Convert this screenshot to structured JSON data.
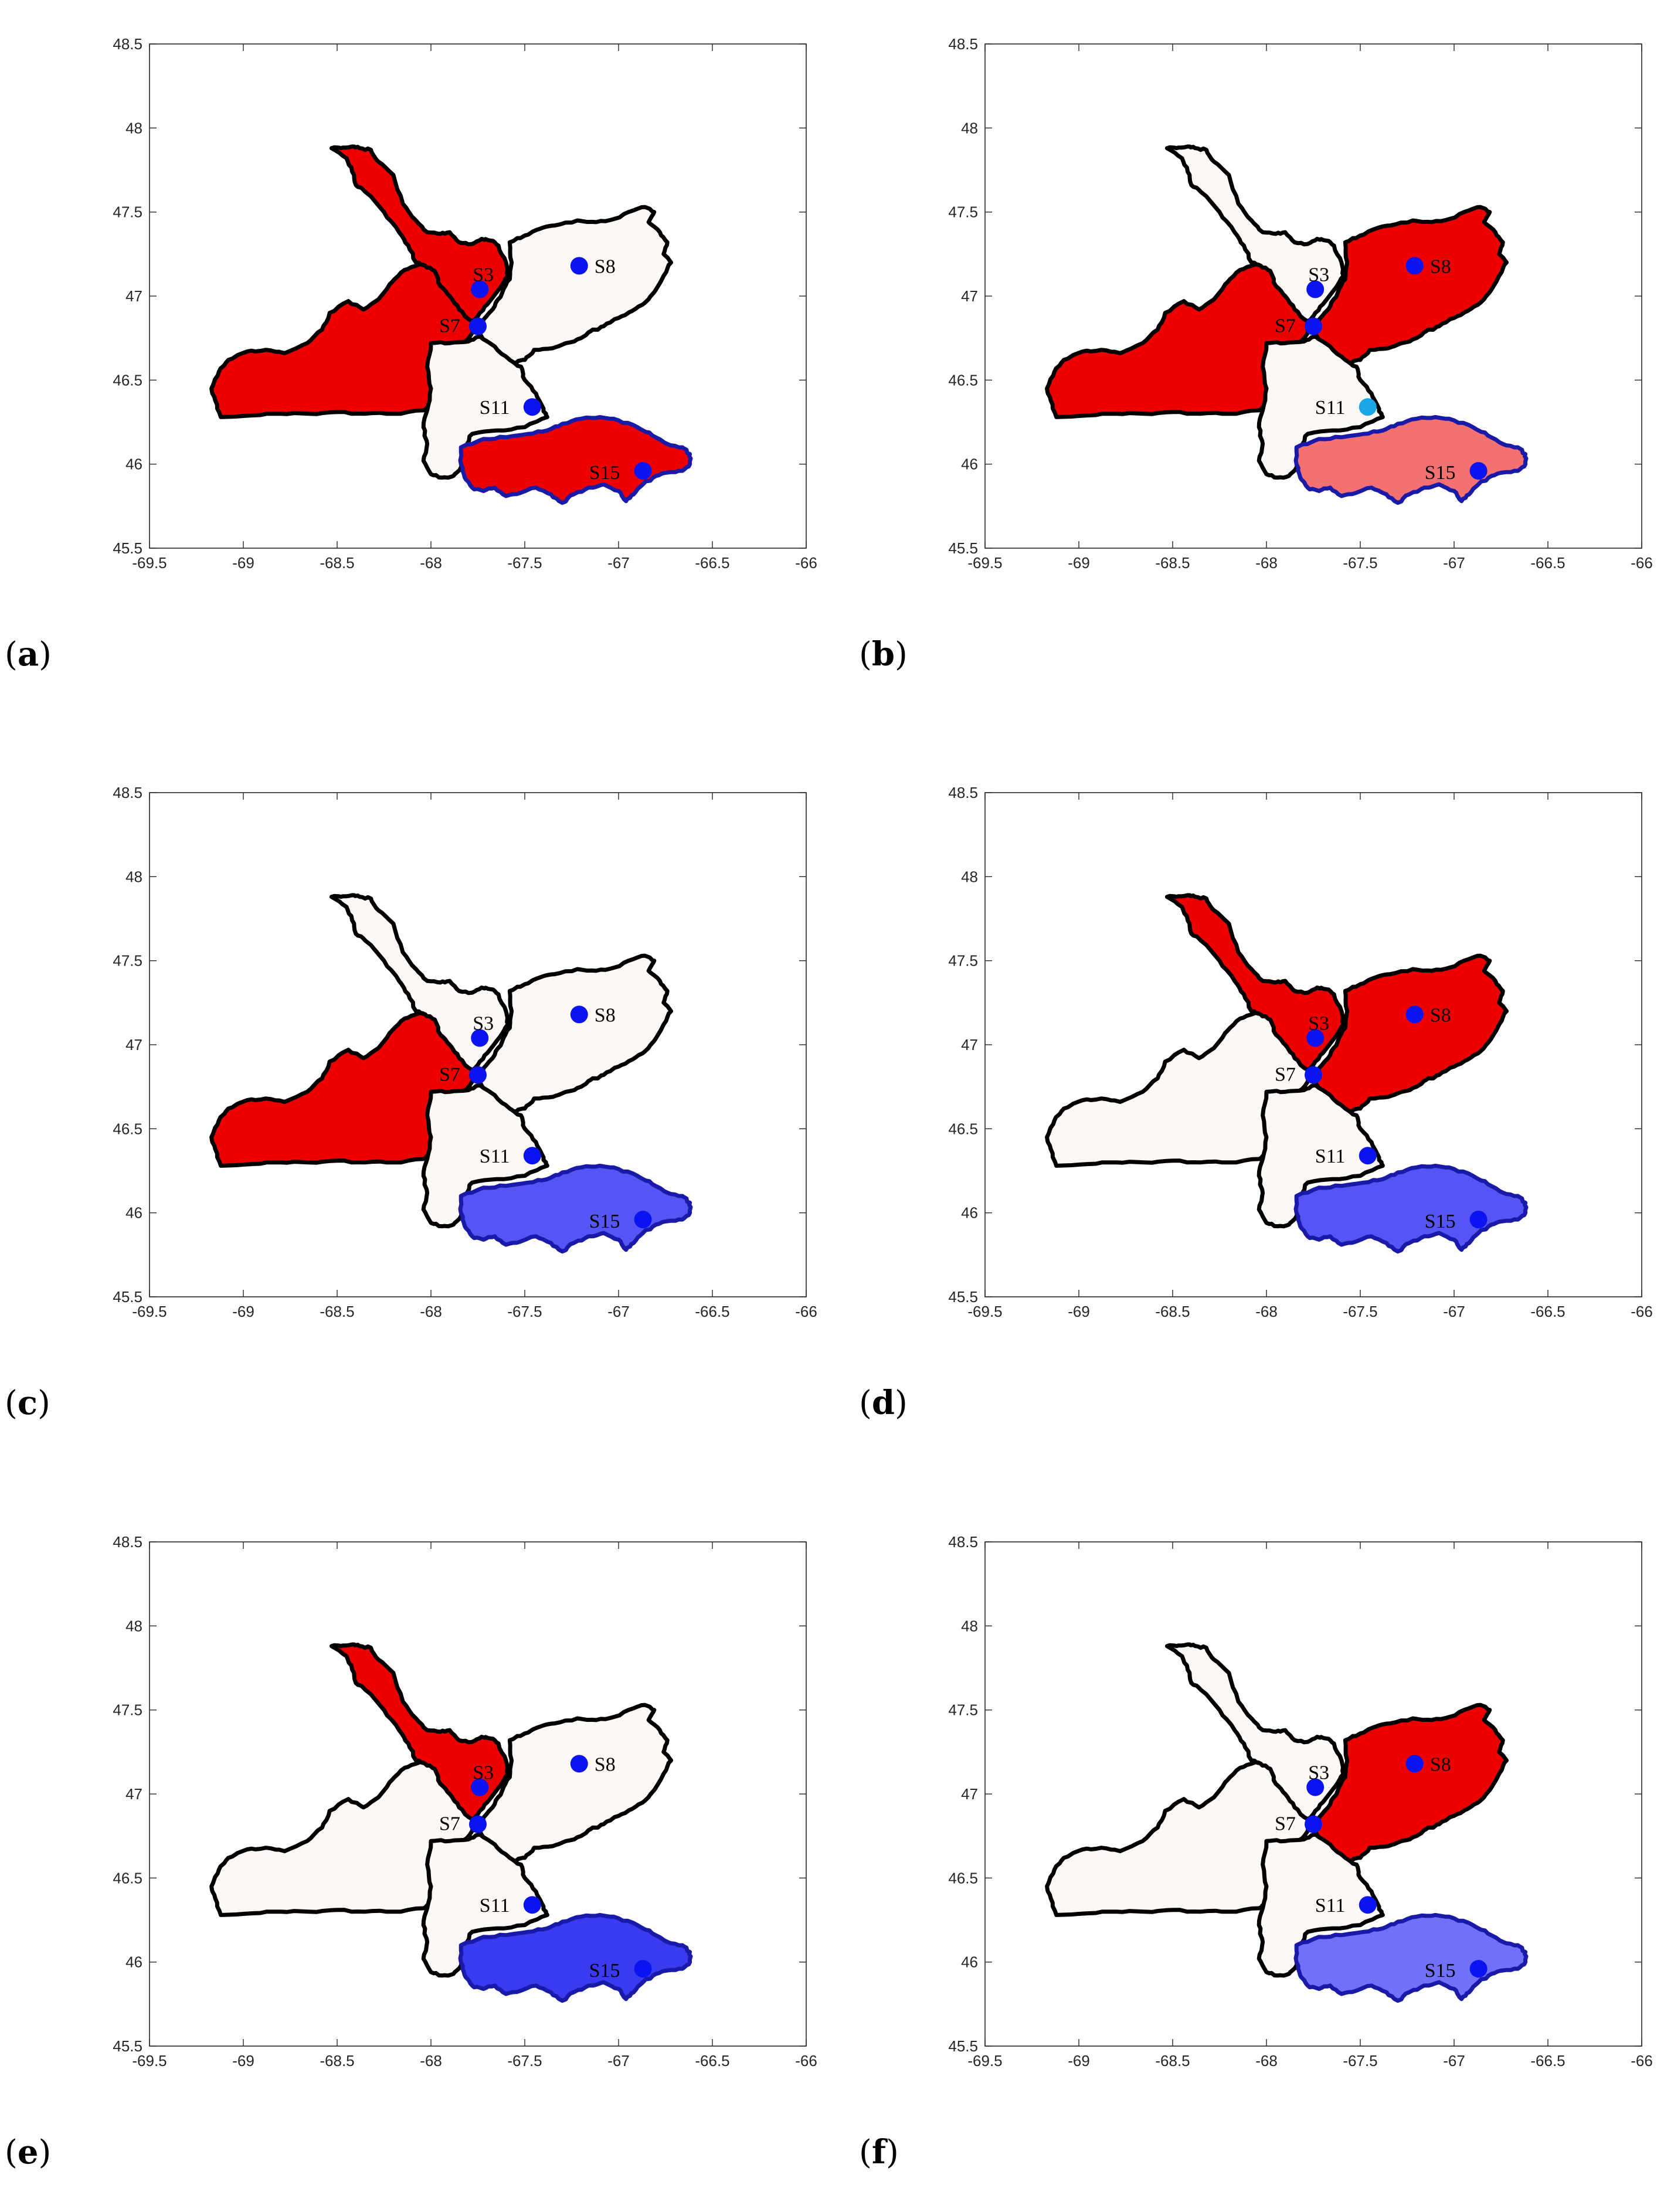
{
  "axis": {
    "xlim": [
      -69.5,
      -66
    ],
    "ylim": [
      45.5,
      48.5
    ],
    "x_ticks": [
      "-69.5",
      "-69",
      "-68.5",
      "-68",
      "-67.5",
      "-67",
      "-66.5",
      "-66"
    ],
    "y_ticks": [
      "45.5",
      "46",
      "46.5",
      "47",
      "47.5",
      "48",
      "48.5"
    ]
  },
  "stations": [
    {
      "id": "S3",
      "label": "S3",
      "lon": -67.74,
      "lat": 47.04
    },
    {
      "id": "S7",
      "label": "S7",
      "lon": -67.75,
      "lat": 46.82
    },
    {
      "id": "S8",
      "label": "S8",
      "lon": -67.21,
      "lat": 47.18
    },
    {
      "id": "S11",
      "label": "S11",
      "lon": -67.46,
      "lat": 46.34
    },
    {
      "id": "S15",
      "label": "S15",
      "lon": -66.87,
      "lat": 45.96
    }
  ],
  "colors": {
    "red": "#ee0000",
    "light_red": "#f57070",
    "white": "#fdf8f6",
    "blue": "#3a3af0",
    "mid_blue": "#5555f5",
    "light_blue": "#7070f8",
    "station_blue": "#0a14f0",
    "station_cyan": "#18a8e8"
  },
  "panels": [
    {
      "id": "a",
      "letter": "a",
      "fills": {
        "S3": "red",
        "S7": "red",
        "S8": "white",
        "S11": "white",
        "S15": "red"
      },
      "station_colors": {
        "S11": "station_blue"
      }
    },
    {
      "id": "b",
      "letter": "b",
      "fills": {
        "S3": "white",
        "S7": "red",
        "S8": "red",
        "S11": "white",
        "S15": "light_red"
      },
      "station_colors": {
        "S11": "station_cyan"
      }
    },
    {
      "id": "c",
      "letter": "c",
      "fills": {
        "S3": "white",
        "S7": "red",
        "S8": "white",
        "S11": "white",
        "S15": "mid_blue"
      },
      "station_colors": {
        "S11": "station_blue"
      }
    },
    {
      "id": "d",
      "letter": "d",
      "fills": {
        "S3": "red",
        "S7": "white",
        "S8": "red",
        "S11": "white",
        "S15": "mid_blue"
      },
      "station_colors": {
        "S11": "station_blue"
      }
    },
    {
      "id": "e",
      "letter": "e",
      "fills": {
        "S3": "red",
        "S7": "white",
        "S8": "white",
        "S11": "white",
        "S15": "blue"
      },
      "station_colors": {
        "S11": "station_blue"
      }
    },
    {
      "id": "f",
      "letter": "f",
      "fills": {
        "S3": "white",
        "S7": "white",
        "S8": "red",
        "S11": "white",
        "S15": "light_blue"
      },
      "station_colors": {
        "S11": "station_blue"
      }
    }
  ]
}
